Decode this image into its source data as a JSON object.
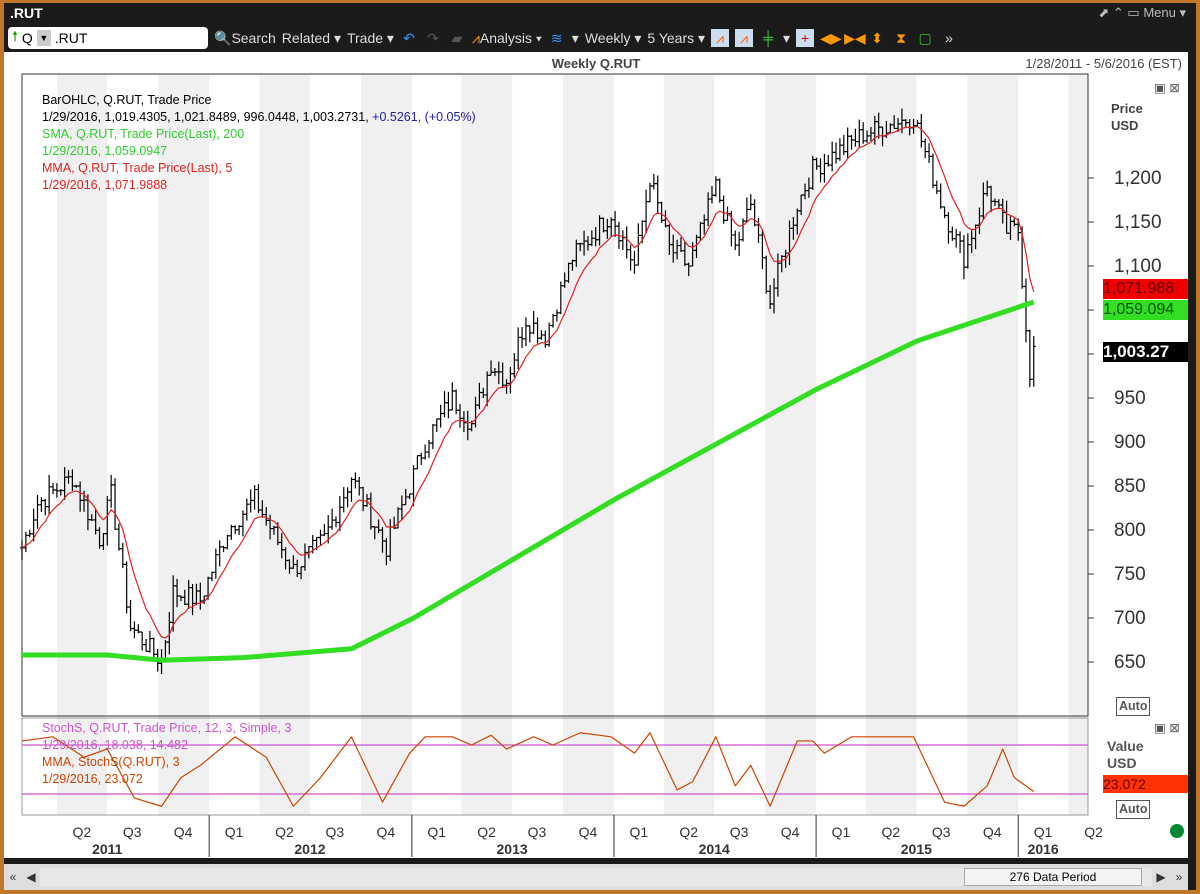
{
  "window": {
    "title": ".RUT",
    "menu_label": "Menu"
  },
  "toolbar": {
    "symbol_prefix": "Q",
    "symbol": ".RUT",
    "search": "Search",
    "related": "Related",
    "trade": "Trade",
    "analysis": "Analysis",
    "interval": "Weekly",
    "range": "5 Years"
  },
  "chart": {
    "title": "Weekly Q.RUT",
    "date_range": "1/28/2011 - 5/6/2016 (EST)",
    "axis_title": "Price",
    "axis_unit": "USD",
    "auto_label": "Auto",
    "lower_axis_title": "Value",
    "lower_axis_unit": "USD",
    "data_period": "276 Data Period"
  },
  "legend": {
    "l1": "BarOHLC, Q.RUT, Trade Price",
    "l2a": "1/29/2016, 1,019.4305, 1,021.8489, 996.0448, 1,003.2731, ",
    "l2b": "+0.5261, (+0.05%)",
    "l3": "SMA, Q.RUT, Trade Price(Last),  200",
    "l4": "1/29/2016, 1,059.0947",
    "l5": "MMA, Q.RUT, Trade Price(Last),  5",
    "l6": "1/29/2016, 1,071.9888",
    "s1": "StochS, Q.RUT, Trade Price,  12, 3, Simple, 3",
    "s2": "1/29/2016, 18.038, 14.482",
    "s3": "MMA, StochS(Q.RUT),  3",
    "s4": "1/29/2016, 23.072"
  },
  "badges": {
    "mma": "1,071.988",
    "sma": "1,059.094",
    "last": "1,003.27",
    "stoch": "23.072"
  },
  "colors": {
    "price": "#000000",
    "sma": "#33dd22",
    "mma": "#dd2222",
    "stoch": "#cc4400",
    "stoch_bands": "#cc55cc",
    "accent": "#c0772a"
  },
  "chart_data": {
    "type": "line",
    "title": "Weekly Q.RUT",
    "ylabel": "Price USD",
    "ylim": [
      600,
      1290
    ],
    "y_ticks": [
      650,
      700,
      750,
      800,
      850,
      900,
      950,
      1000,
      1050,
      1100,
      1150,
      1200
    ],
    "y_tick_labels": [
      "650",
      "700",
      "750",
      "800",
      "850",
      "900",
      "950",
      "",
      "",
      "1,100",
      "1,150",
      "1,200"
    ],
    "x_quarter_labels": [
      "Q2",
      "Q3",
      "Q4",
      "Q1",
      "Q2",
      "Q3",
      "Q4",
      "Q1",
      "Q2",
      "Q3",
      "Q4",
      "Q1",
      "Q2",
      "Q3",
      "Q4",
      "Q1",
      "Q2",
      "Q3",
      "Q4",
      "Q1",
      "Q2"
    ],
    "x_year_labels": [
      "2011",
      "2012",
      "2013",
      "2014",
      "2015",
      "2016"
    ],
    "xlim": [
      "2011-01-28",
      "2016-05-06"
    ],
    "price_close_approx": [
      [
        "2011-01-28",
        780
      ],
      [
        "2011-02-25",
        830
      ],
      [
        "2011-04-29",
        860
      ],
      [
        "2011-06-17",
        790
      ],
      [
        "2011-07-08",
        840
      ],
      [
        "2011-08-12",
        690
      ],
      [
        "2011-10-07",
        650
      ],
      [
        "2011-10-28",
        730
      ],
      [
        "2011-12-16",
        720
      ],
      [
        "2012-02-03",
        800
      ],
      [
        "2012-03-23",
        835
      ],
      [
        "2012-06-01",
        755
      ],
      [
        "2012-07-27",
        790
      ],
      [
        "2012-09-14",
        860
      ],
      [
        "2012-11-16",
        780
      ],
      [
        "2012-12-28",
        850
      ],
      [
        "2013-01-25",
        900
      ],
      [
        "2013-03-15",
        950
      ],
      [
        "2013-04-19",
        920
      ],
      [
        "2013-05-24",
        990
      ],
      [
        "2013-06-21",
        970
      ],
      [
        "2013-07-26",
        1040
      ],
      [
        "2013-08-30",
        1020
      ],
      [
        "2013-10-18",
        1110
      ],
      [
        "2013-12-27",
        1160
      ],
      [
        "2014-02-07",
        1100
      ],
      [
        "2014-03-07",
        1200
      ],
      [
        "2014-04-11",
        1120
      ],
      [
        "2014-05-16",
        1100
      ],
      [
        "2014-07-04",
        1190
      ],
      [
        "2014-08-08",
        1120
      ],
      [
        "2014-09-05",
        1170
      ],
      [
        "2014-10-10",
        1060
      ],
      [
        "2014-11-28",
        1170
      ],
      [
        "2014-12-26",
        1210
      ],
      [
        "2015-03-27",
        1250
      ],
      [
        "2015-06-26",
        1270
      ],
      [
        "2015-08-21",
        1160
      ],
      [
        "2015-09-25",
        1110
      ],
      [
        "2015-11-06",
        1190
      ],
      [
        "2015-12-11",
        1140
      ],
      [
        "2016-01-01",
        1140
      ],
      [
        "2016-01-22",
        980
      ],
      [
        "2016-01-29",
        1003.27
      ]
    ],
    "sma_200": [
      [
        "2011-01-28",
        658
      ],
      [
        "2011-07-01",
        658
      ],
      [
        "2011-10-07",
        652
      ],
      [
        "2012-03-02",
        655
      ],
      [
        "2012-09-14",
        665
      ],
      [
        "2013-01-04",
        700
      ],
      [
        "2014-01-03",
        835
      ],
      [
        "2015-01-02",
        960
      ],
      [
        "2015-07-03",
        1015
      ],
      [
        "2016-01-29",
        1059.09
      ]
    ],
    "stoch_ylim": [
      0,
      100
    ],
    "stoch_bands": [
      80,
      20
    ],
    "stoch_mma": [
      [
        "2011-01-28",
        85
      ],
      [
        "2011-03-25",
        90
      ],
      [
        "2011-05-20",
        65
      ],
      [
        "2011-07-01",
        75
      ],
      [
        "2011-08-19",
        15
      ],
      [
        "2011-10-07",
        5
      ],
      [
        "2011-11-11",
        40
      ],
      [
        "2011-12-16",
        55
      ],
      [
        "2012-02-17",
        90
      ],
      [
        "2012-04-13",
        65
      ],
      [
        "2012-06-01",
        5
      ],
      [
        "2012-07-20",
        40
      ],
      [
        "2012-09-14",
        90
      ],
      [
        "2012-11-09",
        10
      ],
      [
        "2012-12-28",
        70
      ],
      [
        "2013-01-25",
        90
      ],
      [
        "2013-03-15",
        90
      ],
      [
        "2013-04-19",
        80
      ],
      [
        "2013-05-24",
        92
      ],
      [
        "2013-06-21",
        75
      ],
      [
        "2013-08-09",
        90
      ],
      [
        "2013-09-13",
        80
      ],
      [
        "2013-11-01",
        95
      ],
      [
        "2013-12-27",
        90
      ],
      [
        "2014-02-07",
        70
      ],
      [
        "2014-03-07",
        95
      ],
      [
        "2014-04-25",
        25
      ],
      [
        "2014-05-23",
        35
      ],
      [
        "2014-07-04",
        90
      ],
      [
        "2014-08-08",
        30
      ],
      [
        "2014-09-05",
        55
      ],
      [
        "2014-10-10",
        5
      ],
      [
        "2014-11-28",
        85
      ],
      [
        "2014-12-26",
        85
      ],
      [
        "2015-01-16",
        70
      ],
      [
        "2015-03-06",
        90
      ],
      [
        "2015-06-26",
        90
      ],
      [
        "2015-08-21",
        10
      ],
      [
        "2015-09-25",
        5
      ],
      [
        "2015-11-06",
        30
      ],
      [
        "2015-12-04",
        75
      ],
      [
        "2015-12-25",
        40
      ],
      [
        "2016-01-29",
        23.07
      ]
    ]
  }
}
